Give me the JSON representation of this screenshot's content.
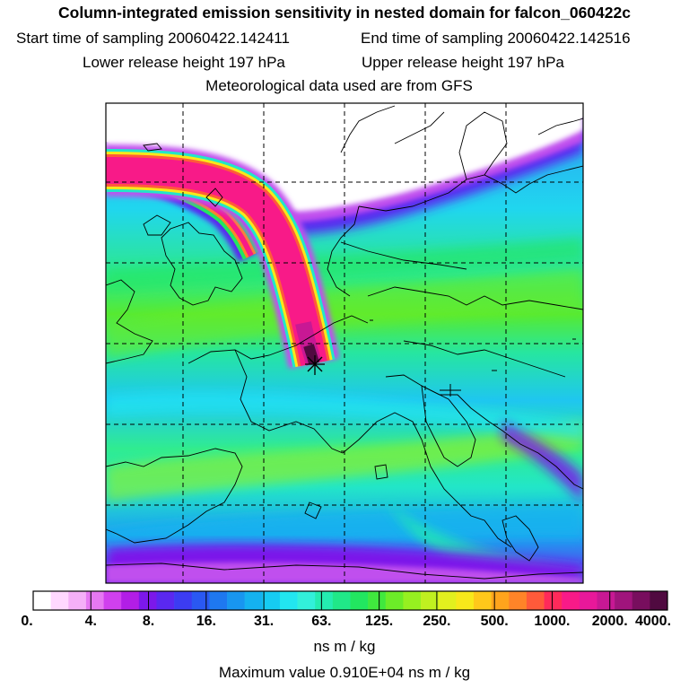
{
  "header": {
    "title": "Column-integrated emission sensitivity in nested domain for falcon_060422c",
    "start_time": "Start time of sampling 20060422.142411",
    "end_time": "End time of sampling 20060422.142516",
    "lower_release": "Lower release height  197 hPa",
    "upper_release": "Upper release height  197 hPa",
    "met_source": "Meteorological data used are from GFS"
  },
  "colorbar": {
    "tick_labels": [
      "0.",
      "4.",
      "8.",
      "16.",
      "31.",
      "63.",
      "125.",
      "250.",
      "500.",
      "1000.",
      "2000.",
      "4000."
    ],
    "colors": [
      "#ffffff",
      "#ffd8ff",
      "#f5b0f8",
      "#e678f2",
      "#d040ee",
      "#b21ee6",
      "#7c18ea",
      "#5a28f0",
      "#3c3cf2",
      "#2a58f2",
      "#1e78f0",
      "#1896f0",
      "#14b2f0",
      "#16ccf2",
      "#22e6f0",
      "#32f0da",
      "#24ecb0",
      "#20e888",
      "#22e660",
      "#40e83e",
      "#6cec28",
      "#96f020",
      "#c0f020",
      "#e2f01e",
      "#f8e81a",
      "#ffc81a",
      "#ffa41c",
      "#ff8428",
      "#ff5a3a",
      "#ff2a5a",
      "#f81a88",
      "#e8189a",
      "#c81894",
      "#a0147c",
      "#780e5e",
      "#500a40"
    ],
    "units": "ns m / kg"
  },
  "footer": {
    "max_value": "Maximum value  0.910E+04 ns m / kg"
  }
}
